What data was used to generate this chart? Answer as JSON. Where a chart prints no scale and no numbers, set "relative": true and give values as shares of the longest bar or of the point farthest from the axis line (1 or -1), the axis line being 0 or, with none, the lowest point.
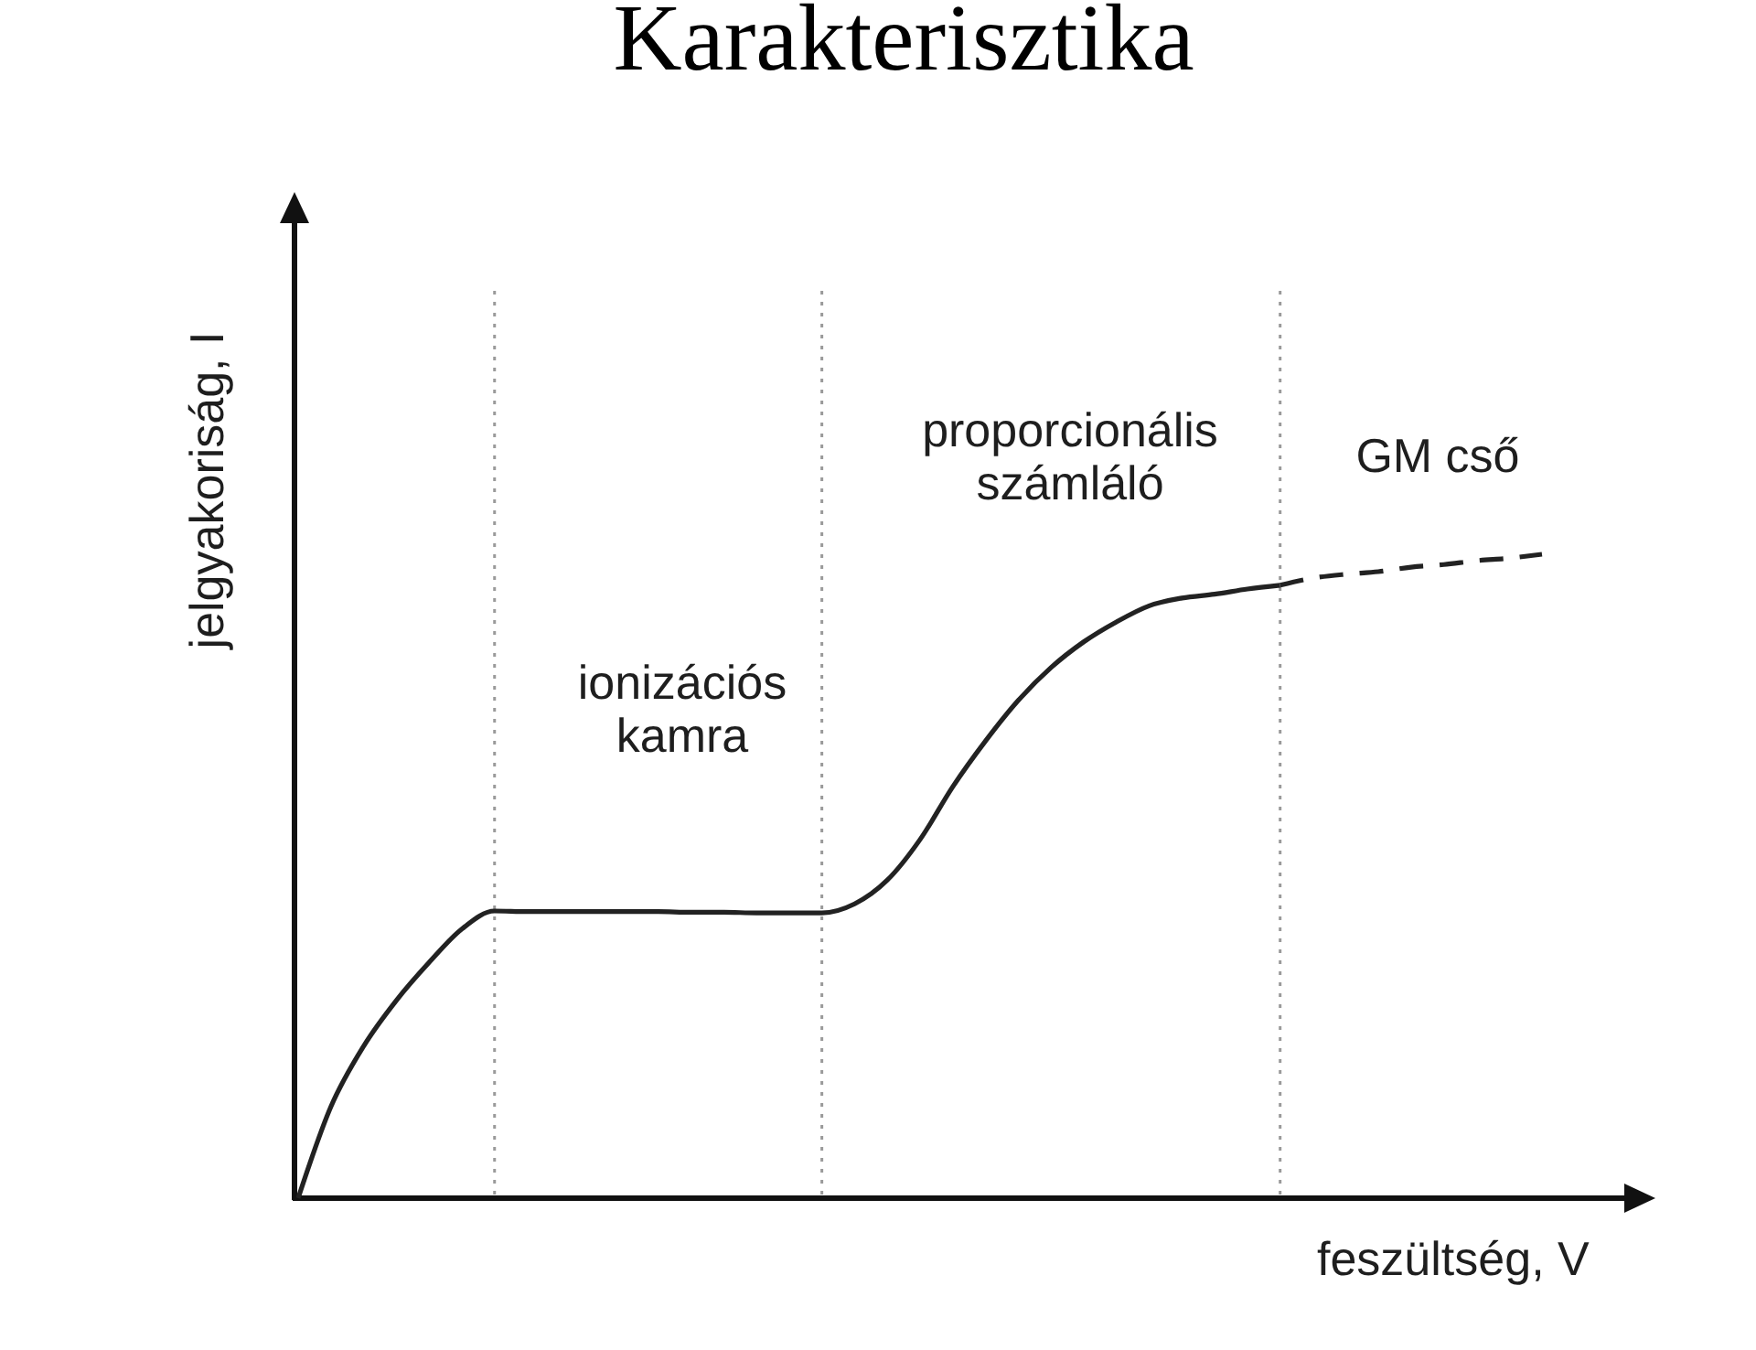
{
  "chart_data": {
    "type": "line",
    "title": "Karakterisztika",
    "xlabel": "feszültség, V",
    "ylabel": "jelgyakoriság, I",
    "relative": true,
    "grid": "x",
    "categories": [
      null,
      null,
      null,
      null,
      null,
      null,
      null,
      null,
      null,
      null,
      null,
      null,
      null,
      null,
      null,
      null,
      null,
      null,
      null,
      null,
      null,
      null,
      null,
      null,
      null,
      null,
      null,
      null,
      null,
      null,
      null,
      null,
      null,
      null,
      null,
      null,
      null,
      null,
      null
    ],
    "series": [
      {
        "color": "#222222",
        "line_style": "solid",
        "values": [
          0,
          0.142,
          0.236,
          0.307,
          0.366,
          0.418,
          0.446,
          0.445,
          0.445,
          0.445,
          0.445,
          0.445,
          0.444,
          0.444,
          0.443,
          0.443,
          0.443,
          0.457,
          0.494,
          0.557,
          0.639,
          0.71,
          0.773,
          0.824,
          0.864,
          0.895,
          0.92,
          0.932,
          0.938,
          0.946,
          0.952,
          null,
          null,
          null,
          null,
          null,
          null,
          null,
          null
        ]
      },
      {
        "color": "#222222",
        "line_style": "dashed",
        "values": [
          null,
          null,
          null,
          null,
          null,
          null,
          null,
          null,
          null,
          null,
          null,
          null,
          null,
          null,
          null,
          null,
          null,
          null,
          null,
          null,
          null,
          null,
          null,
          null,
          null,
          null,
          null,
          null,
          null,
          null,
          0.952,
          0.963,
          0.969,
          0.973,
          0.98,
          0.984,
          0.99,
          0.994,
          1
        ]
      }
    ],
    "annotations": [
      "ionizációs\nkamra",
      "proporcionális\nszámláló",
      "GM cső"
    ]
  }
}
